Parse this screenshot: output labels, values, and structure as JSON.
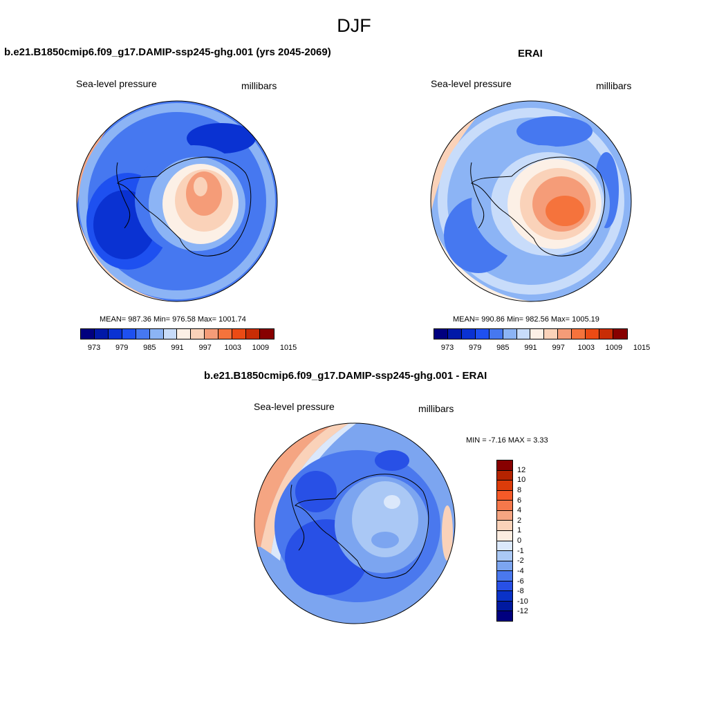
{
  "title": "DJF",
  "panels": [
    {
      "title": "b.e21.B1850cmip6.f09_g17.DAMIP-ssp245-ghg.001 (yrs 2045-2069)",
      "left_label": "Sea-level pressure",
      "right_label": "millibars",
      "stats": "MEAN= 987.36  Min= 976.58  Max= 1001.74",
      "stats_values": {
        "mean": 987.36,
        "min": 976.58,
        "max": 1001.74
      }
    },
    {
      "title": "ERAI",
      "left_label": "Sea-level pressure",
      "right_label": "millibars",
      "stats": "MEAN= 990.86  Min= 982.56  Max= 1005.19",
      "stats_values": {
        "mean": 990.86,
        "min": 982.56,
        "max": 1005.19
      }
    },
    {
      "title": "b.e21.B1850cmip6.f09_g17.DAMIP-ssp245-ghg.001 - ERAI",
      "left_label": "Sea-level pressure",
      "right_label": "millibars",
      "stats": "MIN =  -7.16 MAX =   3.33",
      "stats_values": {
        "min": -7.16,
        "max": 3.33
      }
    }
  ],
  "abs_colorbar": {
    "colors": [
      "#00007f",
      "#0019a8",
      "#0a32d2",
      "#1e50f0",
      "#4678f0",
      "#8cb4f5",
      "#c8dcfa",
      "#fcf0e6",
      "#fad2b9",
      "#f59c78",
      "#f5733c",
      "#eb4b14",
      "#c82d05",
      "#870000"
    ],
    "tick_labels": [
      "973",
      "979",
      "985",
      "991",
      "997",
      "1003",
      "1009",
      "1015"
    ]
  },
  "diff_colorbar": {
    "colors": [
      "#870000",
      "#b42300",
      "#dc3c0a",
      "#f55a28",
      "#f5784b",
      "#f5a582",
      "#fad2b9",
      "#fcece0",
      "#dbe8fb",
      "#aac8f5",
      "#7ca5f0",
      "#4a78ee",
      "#2850e6",
      "#0a32c8",
      "#0019a0",
      "#00007f"
    ],
    "tick_labels": [
      "12",
      "10",
      "8",
      "6",
      "4",
      "2",
      "1",
      "0",
      "-1",
      "-2",
      "-4",
      "-6",
      "-8",
      "-10",
      "-12"
    ]
  }
}
